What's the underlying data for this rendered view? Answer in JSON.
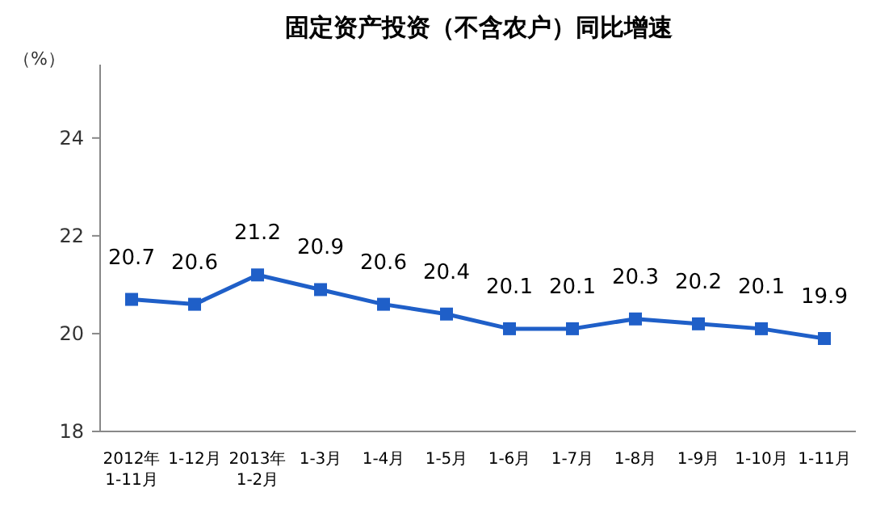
{
  "chart_data": {
    "type": "line",
    "title": "固定资产投资（不含农户）同比增速",
    "ylabel": "（%）",
    "categories": [
      "2012年\n1-11月",
      "1-12月",
      "2013年\n1-2月",
      "1-3月",
      "1-4月",
      "1-5月",
      "1-6月",
      "1-7月",
      "1-8月",
      "1-9月",
      "1-10月",
      "1-11月"
    ],
    "series": [
      {
        "color": "#1f5fc8",
        "values": [
          20.7,
          20.6,
          21.2,
          20.9,
          20.6,
          20.4,
          20.1,
          20.1,
          20.3,
          20.2,
          20.1,
          19.9
        ]
      }
    ],
    "ylim": [
      18,
      25.5
    ],
    "yticks": [
      18,
      20,
      22,
      24
    ],
    "grid": false,
    "marker": "square",
    "line_style": "solid",
    "data_labels": true
  }
}
